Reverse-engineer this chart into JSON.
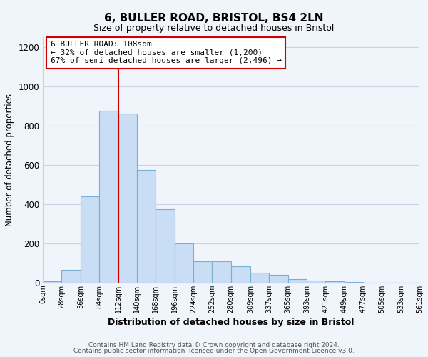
{
  "title": "6, BULLER ROAD, BRISTOL, BS4 2LN",
  "subtitle": "Size of property relative to detached houses in Bristol",
  "xlabel": "Distribution of detached houses by size in Bristol",
  "ylabel": "Number of detached properties",
  "bin_labels": [
    "0sqm",
    "28sqm",
    "56sqm",
    "84sqm",
    "112sqm",
    "140sqm",
    "168sqm",
    "196sqm",
    "224sqm",
    "252sqm",
    "280sqm",
    "309sqm",
    "337sqm",
    "365sqm",
    "393sqm",
    "421sqm",
    "449sqm",
    "477sqm",
    "505sqm",
    "533sqm",
    "561sqm"
  ],
  "bin_edges": [
    0,
    28,
    56,
    84,
    112,
    140,
    168,
    196,
    224,
    252,
    280,
    309,
    337,
    365,
    393,
    421,
    449,
    477,
    505,
    533,
    561
  ],
  "bar_heights": [
    8,
    65,
    440,
    875,
    860,
    575,
    375,
    200,
    110,
    110,
    82,
    52,
    40,
    16,
    10,
    5,
    2,
    1,
    1,
    0
  ],
  "bar_color": "#c9ddf5",
  "bar_edge_color": "#7aafd4",
  "vline_x": 112,
  "vline_color": "#cc0000",
  "annotation_line1": "6 BULLER ROAD: 108sqm",
  "annotation_line2": "← 32% of detached houses are smaller (1,200)",
  "annotation_line3": "67% of semi-detached houses are larger (2,496) →",
  "annotation_box_color": "#ffffff",
  "annotation_box_edge": "#cc0000",
  "ylim": [
    0,
    1250
  ],
  "yticks": [
    0,
    200,
    400,
    600,
    800,
    1000,
    1200
  ],
  "footer1": "Contains HM Land Registry data © Crown copyright and database right 2024.",
  "footer2": "Contains public sector information licensed under the Open Government Licence v3.0.",
  "bg_color": "#f0f4fb",
  "grid_color": "#c8d4e4",
  "title_fontsize": 11,
  "subtitle_fontsize": 9
}
